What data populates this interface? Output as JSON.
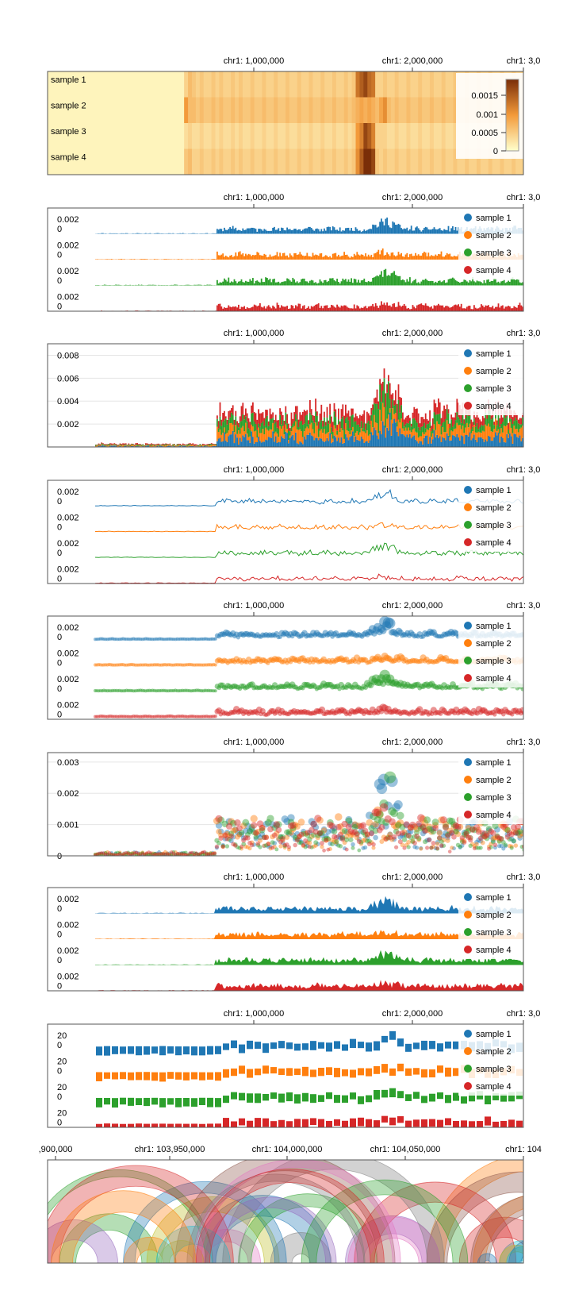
{
  "colors": {
    "series": [
      "#1f77b4",
      "#ff7f0e",
      "#2ca02c",
      "#d62728"
    ],
    "heat_low": "#ffffcc",
    "heat_mid": "#f39a3a",
    "heat_high": "#7a2e08",
    "arc_palette": [
      "#1f77b4",
      "#ff7f0e",
      "#2ca02c",
      "#d62728",
      "#9467bd",
      "#8c564b",
      "#bcbd22",
      "#17becf",
      "#e377c2",
      "#7f7f7f"
    ]
  },
  "chart_data": [
    {
      "type": "heatmap",
      "x_ticks": [
        "chr1: 1,000,000",
        "chr1: 2,000,000",
        "chr1: 3,0"
      ],
      "rows": [
        "sample 1",
        "sample 2",
        "sample 3",
        "sample 4"
      ],
      "colorbar": {
        "ticks": [
          "0.0015",
          "0.001",
          "0.0005",
          "0"
        ],
        "max": 0.0018
      },
      "profiles": [
        [
          0.0001,
          0.0001,
          0.0001,
          0.0001,
          0.0001,
          0.0001,
          0.0001,
          0.0001,
          0.0001,
          0.0001,
          0.0001,
          0.0001,
          0.0001,
          0.0001,
          0.0001,
          0.0001,
          0.0001,
          0.0001,
          0.0001,
          0.0001,
          0.0001,
          0.0001,
          0.0001,
          0.0001,
          0.0001,
          0.0001,
          0.0001,
          0.0001,
          0.0001,
          0.0001,
          0.0001,
          0.0001,
          0.0001,
          0.0001,
          0.0001,
          0.0004,
          0.0006,
          0.0005,
          0.0004,
          0.0005,
          0.0004,
          0.0004,
          0.0005,
          0.0004,
          0.0005,
          0.0004,
          0.0004,
          0.0005,
          0.0004,
          0.0005,
          0.0004,
          0.0004,
          0.0005,
          0.0004,
          0.0004,
          0.0005,
          0.0004,
          0.0004,
          0.0005,
          0.0004,
          0.0004,
          0.0005,
          0.0004,
          0.0004,
          0.0005,
          0.0004,
          0.0004,
          0.0005,
          0.0004,
          0.0004,
          0.0005,
          0.0004,
          0.0004,
          0.0005,
          0.0004,
          0.0004,
          0.0005,
          0.0004,
          0.0005,
          0.0012,
          0.0014,
          0.0016,
          0.0013,
          0.0012,
          0.0004,
          0.0004,
          0.0005,
          0.0004,
          0.0004,
          0.0005,
          0.0004,
          0.0004,
          0.0005,
          0.0004,
          0.0004,
          0.0005,
          0.0004,
          0.0004,
          0.0005,
          0.0004,
          0.0004,
          0.0005,
          0.0004,
          0.0004,
          0.0005,
          0.0004,
          0.0004,
          0.0005,
          0.0004,
          0.0004,
          0.0005,
          0.0004,
          0.0004,
          0.0005,
          0.0004,
          0.0004,
          0.0005,
          0.0004,
          0.0004,
          0.0005,
          0.0004,
          0.0004
        ],
        [
          0.0001,
          0.0001,
          0.0001,
          0.0001,
          0.0001,
          0.0001,
          0.0001,
          0.0001,
          0.0001,
          0.0001,
          0.0001,
          0.0001,
          0.0001,
          0.0001,
          0.0001,
          0.0001,
          0.0001,
          0.0001,
          0.0001,
          0.0001,
          0.0001,
          0.0001,
          0.0001,
          0.0001,
          0.0001,
          0.0001,
          0.0001,
          0.0001,
          0.0001,
          0.0001,
          0.0001,
          0.0001,
          0.0001,
          0.0001,
          0.0001,
          0.0009,
          0.0006,
          0.0006,
          0.0005,
          0.0006,
          0.0005,
          0.0005,
          0.0006,
          0.0005,
          0.0006,
          0.0005,
          0.0005,
          0.0006,
          0.0005,
          0.0006,
          0.0005,
          0.0005,
          0.0006,
          0.0005,
          0.0005,
          0.0006,
          0.0005,
          0.0005,
          0.0006,
          0.0005,
          0.0005,
          0.0006,
          0.0005,
          0.0005,
          0.0006,
          0.0005,
          0.0005,
          0.0006,
          0.0005,
          0.0005,
          0.0006,
          0.0005,
          0.0005,
          0.0006,
          0.0005,
          0.0005,
          0.0006,
          0.0005,
          0.0006,
          0.0007,
          0.0008,
          0.0007,
          0.0008,
          0.0007,
          0.0006,
          0.0008,
          0.001,
          0.0006,
          0.0005,
          0.0006,
          0.0005,
          0.0005,
          0.0006,
          0.0005,
          0.0005,
          0.0006,
          0.0005,
          0.0005,
          0.0006,
          0.0005,
          0.0005,
          0.0006,
          0.0005,
          0.0005,
          0.0006,
          0.0005,
          0.0005,
          0.0006,
          0.0005,
          0.0005,
          0.0006,
          0.0005,
          0.0005,
          0.0006,
          0.0005,
          0.0005,
          0.0006,
          0.0005,
          0.0005,
          0.0006,
          0.0005,
          0.0005
        ],
        [
          0.0001,
          0.0001,
          0.0001,
          0.0001,
          0.0001,
          0.0001,
          0.0001,
          0.0001,
          0.0001,
          0.0001,
          0.0001,
          0.0001,
          0.0001,
          0.0001,
          0.0001,
          0.0001,
          0.0001,
          0.0001,
          0.0001,
          0.0001,
          0.0001,
          0.0001,
          0.0001,
          0.0001,
          0.0001,
          0.0001,
          0.0001,
          0.0001,
          0.0001,
          0.0001,
          0.0001,
          0.0001,
          0.0001,
          0.0001,
          0.0001,
          0.0003,
          0.0004,
          0.0003,
          0.0003,
          0.0004,
          0.0003,
          0.0003,
          0.0004,
          0.0003,
          0.0004,
          0.0003,
          0.0003,
          0.0004,
          0.0003,
          0.0004,
          0.0003,
          0.0003,
          0.0004,
          0.0003,
          0.0003,
          0.0004,
          0.0003,
          0.0003,
          0.0004,
          0.0003,
          0.0003,
          0.0004,
          0.0003,
          0.0003,
          0.0004,
          0.0003,
          0.0003,
          0.0004,
          0.0003,
          0.0003,
          0.0004,
          0.0003,
          0.0003,
          0.0004,
          0.0003,
          0.0003,
          0.0004,
          0.0003,
          0.0004,
          0.0009,
          0.0011,
          0.0016,
          0.0014,
          0.0011,
          0.0004,
          0.0004,
          0.0004,
          0.0003,
          0.0003,
          0.0004,
          0.0003,
          0.0003,
          0.0004,
          0.0003,
          0.0003,
          0.0004,
          0.0003,
          0.0003,
          0.0004,
          0.0003,
          0.0003,
          0.0004,
          0.0003,
          0.0003,
          0.0004,
          0.0003,
          0.0003,
          0.0004,
          0.0003,
          0.0003,
          0.0004,
          0.0003,
          0.0003,
          0.0004,
          0.0003,
          0.0003,
          0.0004,
          0.0003,
          0.0003,
          0.0004,
          0.0003,
          0.0003
        ],
        [
          0.0001,
          0.0001,
          0.0001,
          0.0001,
          0.0001,
          0.0001,
          0.0001,
          0.0001,
          0.0001,
          0.0001,
          0.0001,
          0.0001,
          0.0001,
          0.0001,
          0.0001,
          0.0001,
          0.0001,
          0.0001,
          0.0001,
          0.0001,
          0.0001,
          0.0001,
          0.0001,
          0.0001,
          0.0001,
          0.0001,
          0.0001,
          0.0001,
          0.0001,
          0.0001,
          0.0001,
          0.0001,
          0.0001,
          0.0001,
          0.0001,
          0.0005,
          0.0006,
          0.0004,
          0.0004,
          0.0005,
          0.0004,
          0.0004,
          0.0005,
          0.0004,
          0.0005,
          0.0004,
          0.0004,
          0.0005,
          0.0004,
          0.0005,
          0.0004,
          0.0004,
          0.0005,
          0.0004,
          0.0004,
          0.0005,
          0.0004,
          0.0004,
          0.0005,
          0.0004,
          0.0004,
          0.0005,
          0.0004,
          0.0004,
          0.0005,
          0.0004,
          0.0004,
          0.0005,
          0.0004,
          0.0004,
          0.0005,
          0.0004,
          0.0004,
          0.0005,
          0.0004,
          0.0004,
          0.0005,
          0.0004,
          0.0005,
          0.001,
          0.0014,
          0.0018,
          0.0018,
          0.0016,
          0.0005,
          0.0004,
          0.0005,
          0.0004,
          0.0004,
          0.0005,
          0.0004,
          0.0004,
          0.0005,
          0.0004,
          0.0004,
          0.0005,
          0.0004,
          0.0004,
          0.0005,
          0.0004,
          0.0004,
          0.0005,
          0.0004,
          0.0004,
          0.0005,
          0.0004,
          0.0004,
          0.0005,
          0.0004,
          0.0004,
          0.0005,
          0.0004,
          0.0004,
          0.0005,
          0.0004,
          0.0004,
          0.0005,
          0.0004,
          0.0004,
          0.0005,
          0.0004,
          0.0004
        ]
      ]
    },
    {
      "type": "bar",
      "x_ticks": [
        "chr1: 1,000,000",
        "chr1: 2,000,000",
        "chr1: 3,0"
      ],
      "track_ticks": [
        "0.002",
        "0"
      ],
      "series_names": [
        "sample 1",
        "sample 2",
        "sample 3",
        "sample 4"
      ]
    },
    {
      "type": "bar",
      "stacked": true,
      "x_ticks": [
        "chr1: 1,000,000",
        "chr1: 2,000,000",
        "chr1: 3,0"
      ],
      "y_ticks": [
        "0.008",
        "0.006",
        "0.004",
        "0.002"
      ],
      "ylim": [
        0,
        0.009
      ],
      "series_names": [
        "sample 1",
        "sample 2",
        "sample 3",
        "sample 4"
      ]
    },
    {
      "type": "line",
      "x_ticks": [
        "chr1: 1,000,000",
        "chr1: 2,000,000",
        "chr1: 3,0"
      ],
      "track_ticks": [
        "0.002",
        "0"
      ],
      "series_names": [
        "sample 1",
        "sample 2",
        "sample 3",
        "sample 4"
      ]
    },
    {
      "type": "scatter",
      "x_ticks": [
        "chr1: 1,000,000",
        "chr1: 2,000,000",
        "chr1: 3,0"
      ],
      "track_ticks": [
        "0.002",
        "0"
      ],
      "series_names": [
        "sample 1",
        "sample 2",
        "sample 3",
        "sample 4"
      ]
    },
    {
      "type": "scatter",
      "overlay": true,
      "x_ticks": [
        "chr1: 1,000,000",
        "chr1: 2,000,000",
        "chr1: 3,0"
      ],
      "y_ticks": [
        "0.003",
        "0.002",
        "0.001",
        "0"
      ],
      "ylim": [
        0,
        0.0033
      ],
      "series_names": [
        "sample 1",
        "sample 2",
        "sample 3",
        "sample 4"
      ]
    },
    {
      "type": "area",
      "x_ticks": [
        "chr1: 1,000,000",
        "chr1: 2,000,000",
        "chr1: 3,0"
      ],
      "track_ticks": [
        "0.002",
        "0"
      ],
      "series_names": [
        "sample 1",
        "sample 2",
        "sample 3",
        "sample 4"
      ]
    },
    {
      "type": "bar",
      "x_ticks": [
        "chr1: 1,000,000",
        "chr1: 2,000,000",
        "chr1: 3,0"
      ],
      "track_ticks": [
        "20",
        "0"
      ],
      "series_names": [
        "sample 1",
        "sample 2",
        "sample 3",
        "sample 4"
      ]
    },
    {
      "type": "arcs",
      "x_ticks": [
        ",900,000",
        "chr1: 103,950,000",
        "chr1: 104,000,000",
        "chr1: 104,050,000",
        "chr1: 104"
      ]
    }
  ]
}
